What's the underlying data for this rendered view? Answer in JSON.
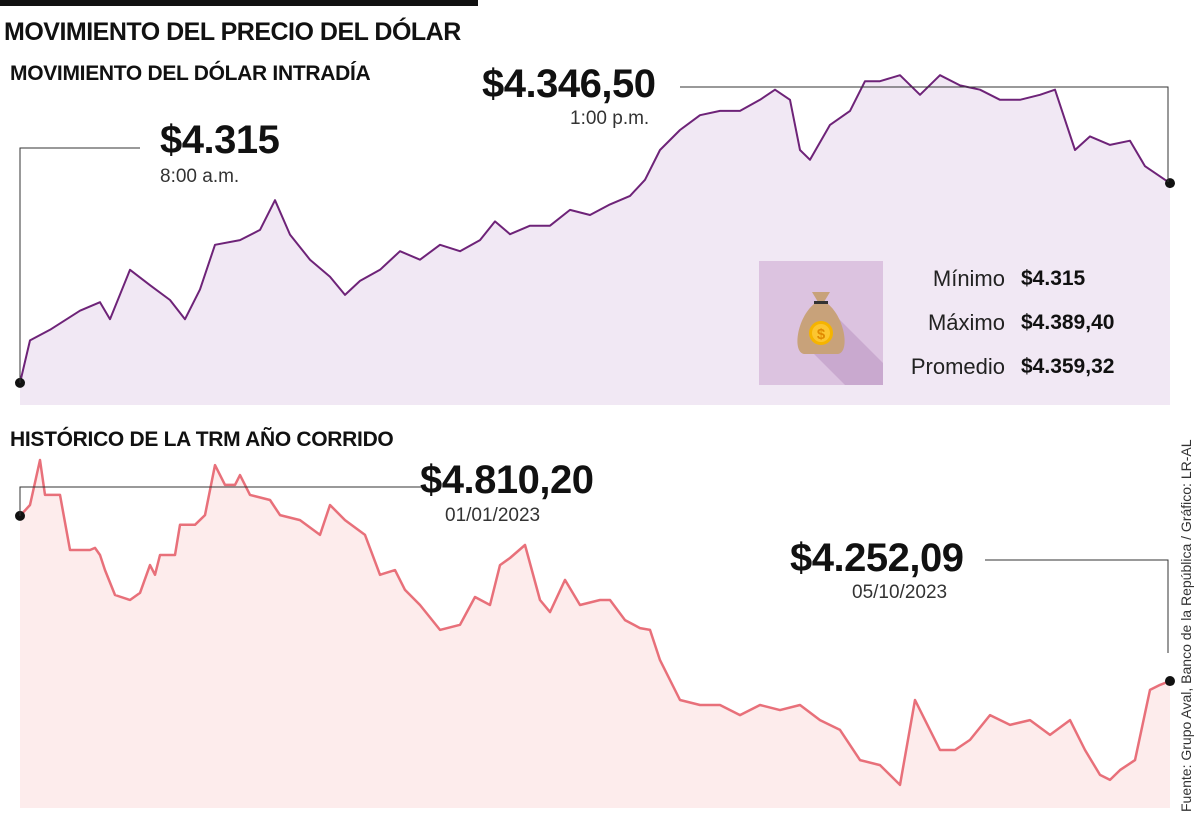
{
  "title": "MOVIMIENTO DEL PRECIO DEL DÓLAR",
  "source": "Fuente: Grupo Aval, Banco de la República / Gráfico: LR-AL",
  "colors": {
    "intraday_line": "#6e2378",
    "intraday_fill": "#f1e8f4",
    "trm_line": "#e8707a",
    "trm_fill": "#fdecec",
    "icon_bg": "#dcc3e0"
  },
  "icon": "money-bag-icon",
  "stats": [
    {
      "label": "Mínimo",
      "value": "$4.315"
    },
    {
      "label": "Máximo",
      "value": "$4.389,40"
    },
    {
      "label": "Promedio",
      "value": "$4.359,32"
    }
  ],
  "chart_data": [
    {
      "type": "area",
      "title": "MOVIMIENTO DEL DÓLAR INTRADÍA",
      "xlim": [
        0,
        1150
      ],
      "ylim": [
        4309.8,
        4389.8
      ],
      "annotations": [
        {
          "value": "$4.315",
          "label": "8:00 a.m."
        },
        {
          "value": "$4.346,50",
          "label": "1:00 p.m."
        }
      ],
      "x": [
        0,
        10,
        30,
        60,
        80,
        90,
        110,
        130,
        150,
        165,
        180,
        195,
        220,
        240,
        255,
        270,
        290,
        310,
        325,
        340,
        360,
        380,
        400,
        420,
        440,
        460,
        475,
        490,
        510,
        530,
        550,
        570,
        590,
        610,
        625,
        640,
        660,
        680,
        700,
        720,
        740,
        755,
        770,
        780,
        790,
        810,
        830,
        845,
        860,
        880,
        900,
        920,
        940,
        960,
        980,
        1000,
        1020,
        1035,
        1055,
        1070,
        1090,
        1110,
        1125,
        1150
      ],
      "values": [
        4315,
        4325,
        4327.5,
        4332,
        4334,
        4330,
        4341.6,
        4338,
        4334.5,
        4330,
        4337,
        4347.5,
        4348.6,
        4351,
        4358,
        4349.9,
        4344,
        4340,
        4335.7,
        4339,
        4341.6,
        4346,
        4344,
        4347.5,
        4346,
        4348.6,
        4353,
        4350,
        4352,
        4352,
        4355.7,
        4354.5,
        4357,
        4359,
        4362.8,
        4369.8,
        4374.5,
        4378,
        4379,
        4379,
        4381.6,
        4384,
        4381.6,
        4369.8,
        4367.5,
        4375.7,
        4379,
        4386,
        4386,
        4387.4,
        4382.8,
        4387.4,
        4385,
        4384,
        4381.6,
        4381.6,
        4382.8,
        4384,
        4369.8,
        4373,
        4371,
        4372,
        4366,
        4362
      ]
    },
    {
      "type": "area",
      "title": "HISTÓRICO DE LA TRM AÑO CORRIDO",
      "xlim": [
        0,
        1150
      ],
      "ylim": [
        3823,
        5016
      ],
      "annotations": [
        {
          "value": "$4.810,20",
          "label": "01/01/2023"
        },
        {
          "value": "$4.252,09",
          "label": "05/10/2023"
        }
      ],
      "x": [
        0,
        10,
        20,
        25,
        40,
        50,
        70,
        75,
        80,
        85,
        95,
        110,
        120,
        130,
        135,
        140,
        155,
        160,
        175,
        185,
        195,
        205,
        215,
        220,
        230,
        250,
        260,
        280,
        300,
        310,
        325,
        345,
        360,
        375,
        385,
        400,
        420,
        440,
        455,
        470,
        480,
        490,
        505,
        520,
        530,
        545,
        560,
        580,
        590,
        605,
        620,
        630,
        640,
        660,
        680,
        700,
        720,
        740,
        760,
        780,
        800,
        820,
        840,
        860,
        880,
        895,
        905,
        920,
        935,
        950,
        970,
        990,
        1010,
        1030,
        1050,
        1065,
        1080,
        1090,
        1100,
        1115,
        1130,
        1140,
        1150
      ],
      "values": [
        4810.2,
        4847,
        4999,
        4881,
        4881,
        4695,
        4695,
        4702,
        4678,
        4627,
        4543,
        4526,
        4550,
        4644,
        4611,
        4678,
        4678,
        4780,
        4780,
        4813,
        4982,
        4915,
        4915,
        4948,
        4881,
        4864,
        4813,
        4796,
        4746,
        4847,
        4796,
        4746,
        4611,
        4627,
        4560,
        4509,
        4425,
        4442,
        4536,
        4509,
        4644,
        4668,
        4712,
        4526,
        4485,
        4594,
        4509,
        4526,
        4526,
        4458,
        4431,
        4425,
        4323,
        4188,
        4171,
        4171,
        4137,
        4171,
        4154,
        4171,
        4120,
        4087,
        3985,
        3968,
        3901,
        4188,
        4120,
        4019,
        4019,
        4053,
        4137,
        4104,
        4120,
        4070,
        4120,
        4019,
        3935,
        3918,
        3951,
        3985,
        4222,
        4239,
        4252.09
      ]
    }
  ]
}
